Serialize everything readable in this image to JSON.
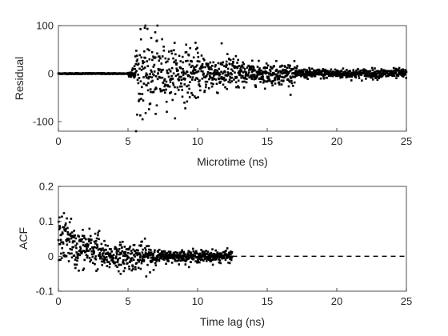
{
  "chart_data": [
    {
      "type": "scatter",
      "xlabel": "Microtime (ns)",
      "ylabel": "Residual",
      "xlim": [
        0,
        25
      ],
      "ylim": [
        -120,
        100
      ],
      "xticks": [
        "0",
        "5",
        "10",
        "15",
        "20",
        "25"
      ],
      "yticks": [
        "-100",
        "0",
        "100"
      ],
      "grid": false,
      "series": [
        {
          "segments": [
            {
              "x": [
                0,
                5.0
              ],
              "kind": "flat",
              "amp": 1
            },
            {
              "x": [
                5.0,
                5.5
              ],
              "kind": "rise",
              "amp": 8
            },
            {
              "x": [
                5.5,
                7.5
              ],
              "kind": "noise",
              "amp": 75
            },
            {
              "x": [
                7.5,
                10
              ],
              "kind": "noise",
              "amp": 50
            },
            {
              "x": [
                10,
                13
              ],
              "kind": "noise",
              "amp": 35
            },
            {
              "x": [
                13,
                17
              ],
              "kind": "noise",
              "amp": 20
            },
            {
              "x": [
                17,
                25
              ],
              "kind": "noise",
              "amp": 9
            }
          ]
        }
      ]
    },
    {
      "type": "scatter",
      "xlabel": "Time lag (ns)",
      "ylabel": "ACF",
      "xlim": [
        0,
        25
      ],
      "ylim": [
        -0.1,
        0.2
      ],
      "xticks": [
        "0",
        "5",
        "10",
        "15",
        "20",
        "25"
      ],
      "yticks": [
        "-0.1",
        "0",
        "0.1",
        "0.2"
      ],
      "grid": false,
      "series": [
        {
          "segments": [
            {
              "x": [
                0,
                1
              ],
              "kind": "acf",
              "mean": 0.05,
              "amp": 0.06
            },
            {
              "x": [
                1,
                3
              ],
              "kind": "acf",
              "mean": 0.02,
              "amp": 0.05
            },
            {
              "x": [
                3,
                7
              ],
              "kind": "acf",
              "mean": 0.0,
              "amp": 0.035
            },
            {
              "x": [
                7,
                12.5
              ],
              "kind": "acf",
              "mean": 0.0,
              "amp": 0.015
            }
          ]
        },
        {
          "style": "dashed",
          "x": [
            12.5,
            25
          ],
          "y": [
            0,
            0
          ]
        }
      ]
    }
  ]
}
